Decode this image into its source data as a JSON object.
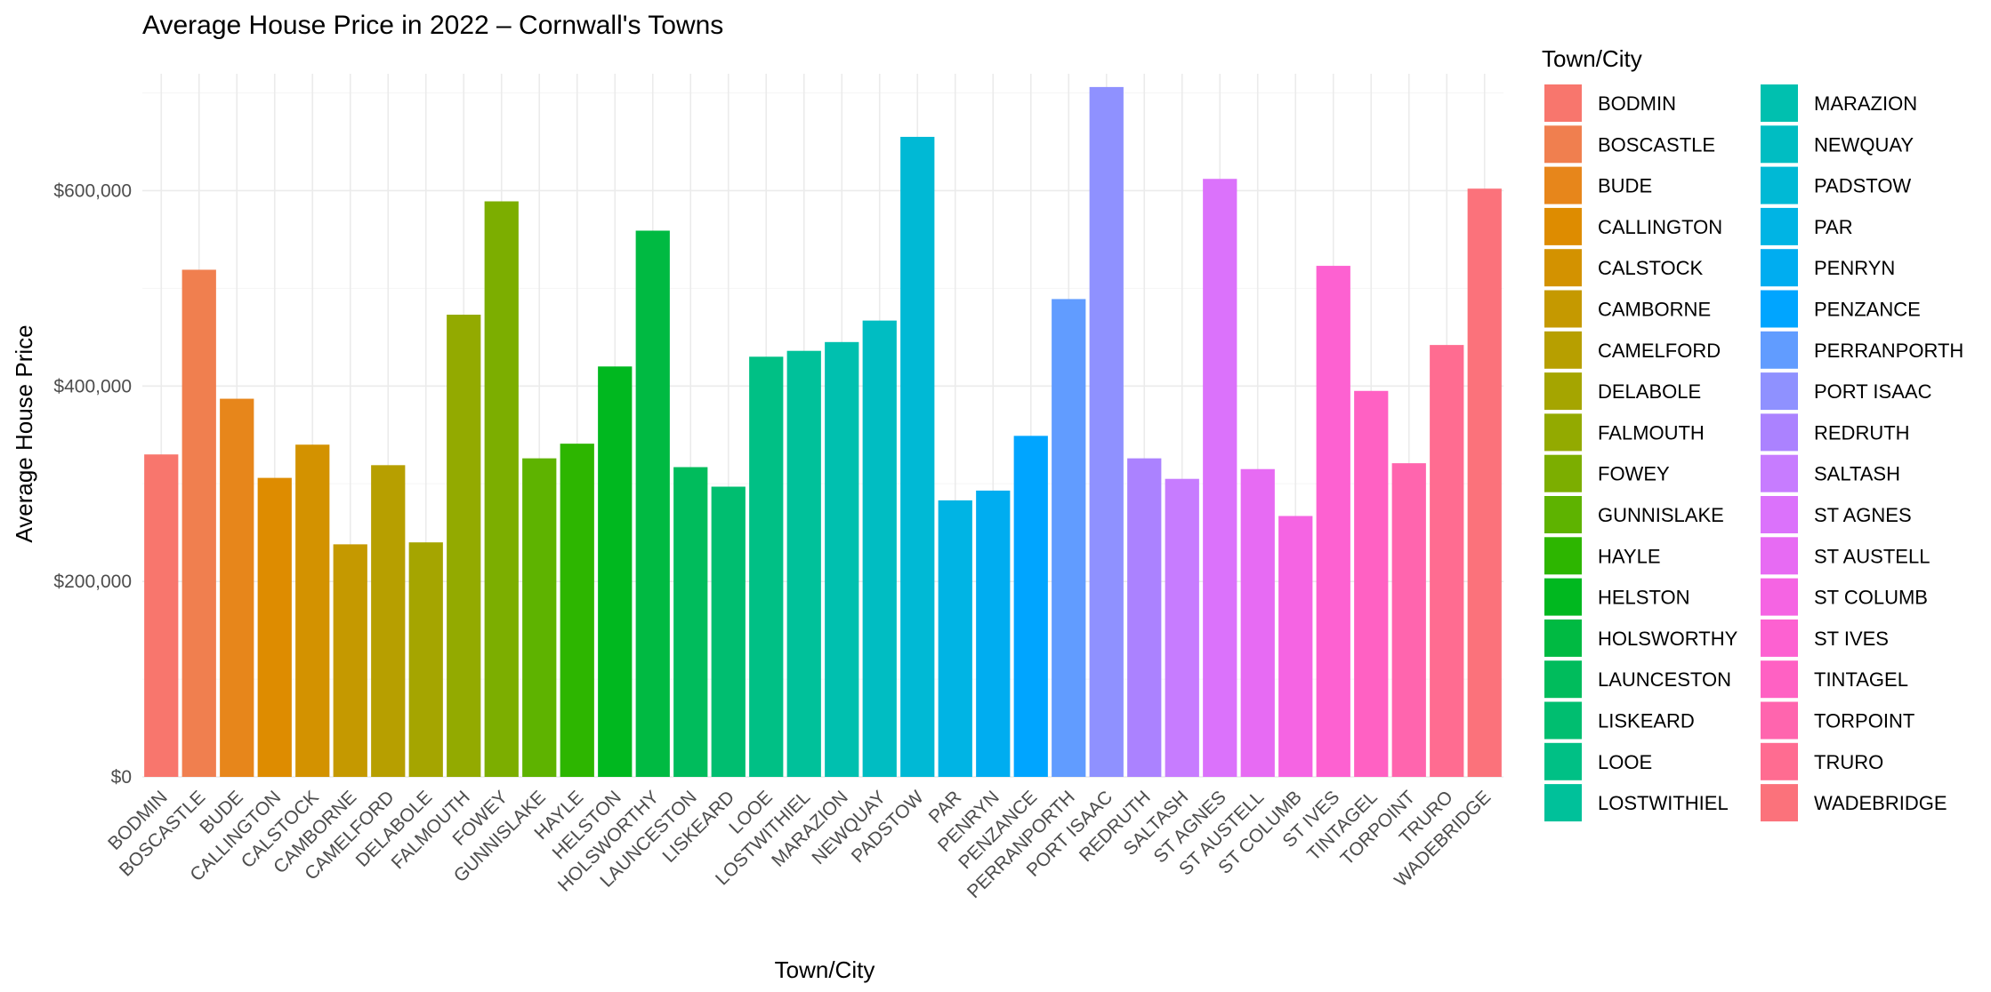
{
  "chart_data": {
    "type": "bar",
    "title": "Average House Price in 2022 – Cornwall's Towns",
    "xlabel": "Town/City",
    "ylabel": "Average House Price",
    "legend_title": "Town/City",
    "legend_position": "right",
    "ylim": [
      0,
      715000
    ],
    "y_ticks": [
      0,
      200000,
      400000,
      600000
    ],
    "y_tick_labels": [
      "$0",
      "$200,000",
      "$400,000",
      "$600,000"
    ],
    "grid": true,
    "categories": [
      "BODMIN",
      "BOSCASTLE",
      "BUDE",
      "CALLINGTON",
      "CALSTOCK",
      "CAMBORNE",
      "CAMELFORD",
      "DELABOLE",
      "FALMOUTH",
      "FOWEY",
      "GUNNISLAKE",
      "HAYLE",
      "HELSTON",
      "HOLSWORTHY",
      "LAUNCESTON",
      "LISKEARD",
      "LOOE",
      "LOSTWITHIEL",
      "MARAZION",
      "NEWQUAY",
      "PADSTOW",
      "PAR",
      "PENRYN",
      "PENZANCE",
      "PERRANPORTH",
      "PORT ISAAC",
      "REDRUTH",
      "SALTASH",
      "ST AGNES",
      "ST AUSTELL",
      "ST COLUMB",
      "ST IVES",
      "TINTAGEL",
      "TORPOINT",
      "TRURO",
      "WADEBRIDGE"
    ],
    "values": [
      330000,
      519000,
      387000,
      306000,
      340000,
      238000,
      319000,
      240000,
      473000,
      589000,
      326000,
      341000,
      420000,
      559000,
      317000,
      297000,
      430000,
      436000,
      445000,
      467000,
      655000,
      283000,
      293000,
      349000,
      489000,
      706000,
      326000,
      305000,
      612000,
      315000,
      267000,
      523000,
      395000,
      321000,
      442000,
      602000
    ],
    "colors": [
      "#F8766D",
      "#F07F4F",
      "#E7861B",
      "#DE8C00",
      "#D39200",
      "#C59900",
      "#B79F00",
      "#A5A500",
      "#93AA00",
      "#7CAE00",
      "#5EB300",
      "#2DB600",
      "#00B81F",
      "#00BA42",
      "#00BC5C",
      "#00BE70",
      "#00C085",
      "#00C19A",
      "#00C0AF",
      "#00BDC2",
      "#00B9D5",
      "#00B4E4",
      "#00ADF0",
      "#00A5FF",
      "#619CFF",
      "#8F91FF",
      "#AB82FF",
      "#C77CFF",
      "#DB72FB",
      "#E76BF3",
      "#F564E3",
      "#FD61D1",
      "#FF61C3",
      "#FF65AE",
      "#FF6C91",
      "#FB727B"
    ]
  }
}
